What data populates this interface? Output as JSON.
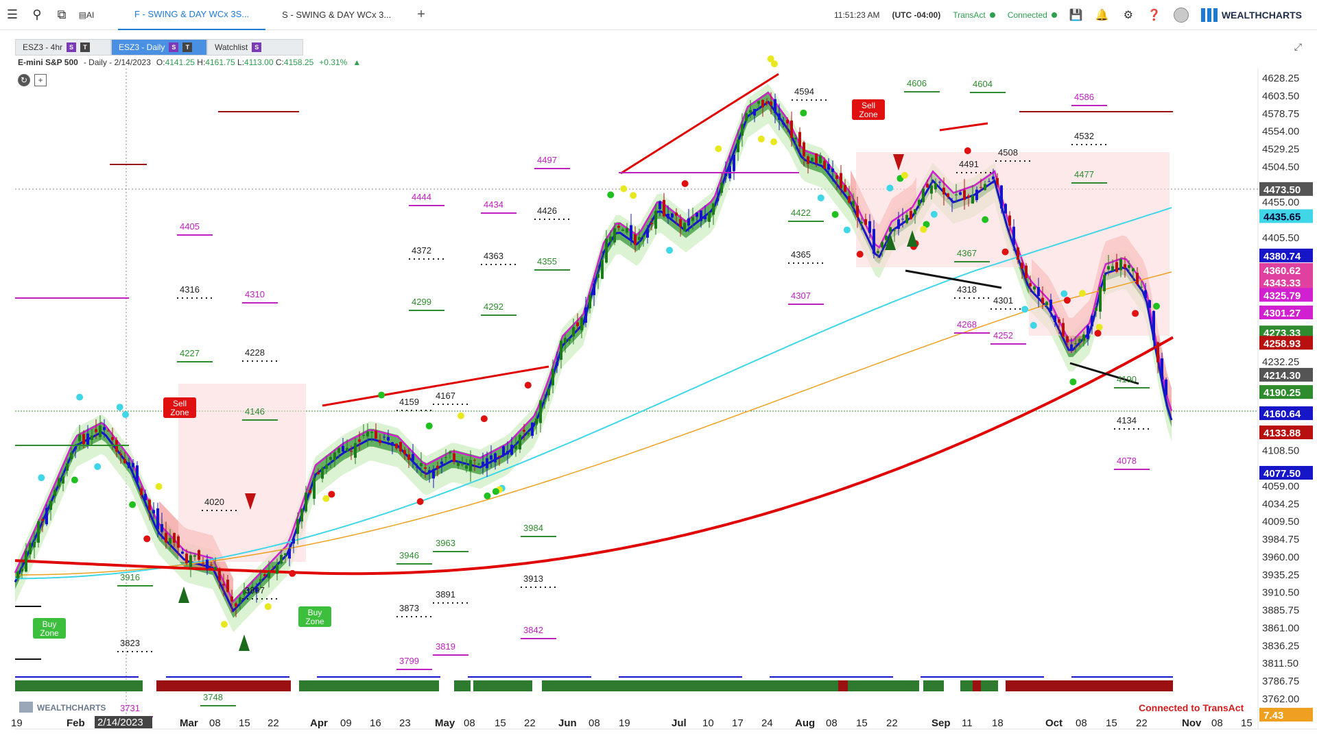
{
  "topbar": {
    "tabs": [
      {
        "label": "F - SWING & DAY WCx 3S...",
        "active": true
      },
      {
        "label": "S - SWING & DAY WCx 3...",
        "active": false
      }
    ],
    "plus": "+",
    "time": "11:51:23 AM",
    "tz": "(UTC -04:00)",
    "transact": "TransAct",
    "connected": "Connected",
    "logo": "WEALTHCHARTS",
    "ai_label": "AI"
  },
  "chart_tabs": [
    {
      "label": "ESZ3 - 4hr",
      "active": false,
      "badges": [
        "S",
        "T"
      ]
    },
    {
      "label": "ESZ3 - Daily",
      "active": true,
      "badges": [
        "S",
        "T"
      ]
    },
    {
      "label": "Watchlist",
      "active": false,
      "badges": [
        "S"
      ]
    }
  ],
  "legend": {
    "symbol": "E-mini S&P 500",
    "meta": "- Daily - 2/14/2023",
    "o_label": "O:",
    "o": "4141.25",
    "h_label": "H:",
    "h": "4161.75",
    "l_label": "L:",
    "l": "4113.00",
    "c_label": "C:",
    "c": "4158.25",
    "chg": "+0.31%"
  },
  "footer": {
    "connected_note": "Connected to TransAct",
    "watermark": "WEALTHCHARTS"
  },
  "colors": {
    "up": "#2e8b2e",
    "down": "#b80f0f",
    "blue": "#1616c8",
    "magenta": "#d020d0",
    "cyan": "#3fd6e8",
    "orange": "#f0a020",
    "red_ma": "#e00000",
    "accent": "#1d7bd8"
  },
  "chart_data": {
    "type": "candlestick",
    "x_labels": [
      "19",
      "Feb",
      "2/14/2023",
      "Mar",
      "08",
      "15",
      "22",
      "Apr",
      "09",
      "16",
      "23",
      "May",
      "08",
      "15",
      "22",
      "Jun",
      "08",
      "19",
      "Jul",
      "10",
      "17",
      "24",
      "Aug",
      "08",
      "15",
      "22",
      "Sep",
      "11",
      "18",
      "Oct",
      "08",
      "15",
      "22",
      "Nov",
      "08",
      "15"
    ],
    "y_ticks": [
      "4628.25",
      "4603.50",
      "4578.75",
      "4554.00",
      "4529.25",
      "4504.50",
      "4455.00",
      "4405.50",
      "4232.25",
      "4108.50",
      "4059.00",
      "4034.25",
      "4009.50",
      "3984.75",
      "3960.00",
      "3935.25",
      "3910.50",
      "3885.75",
      "3861.00",
      "3836.25",
      "3811.50",
      "3786.75",
      "3762.00"
    ],
    "price_tags": [
      {
        "value": "4473.50",
        "bg": "#555555"
      },
      {
        "value": "4435.65",
        "bg": "#3fd6e8"
      },
      {
        "value": "4380.74",
        "bg": "#1616c8"
      },
      {
        "value": "4360.62",
        "bg": "#e040a0"
      },
      {
        "value": "4343.33",
        "bg": "#e040a0"
      },
      {
        "value": "4325.79",
        "bg": "#d020d0"
      },
      {
        "value": "4301.27",
        "bg": "#d020d0"
      },
      {
        "value": "4273.33",
        "bg": "#2e8b2e"
      },
      {
        "value": "4258.93",
        "bg": "#b80f0f"
      },
      {
        "value": "4214.30",
        "bg": "#555555"
      },
      {
        "value": "4190.25",
        "bg": "#2e8b2e"
      },
      {
        "value": "4160.64",
        "bg": "#1616c8"
      },
      {
        "value": "4133.88",
        "bg": "#b80f0f"
      },
      {
        "value": "4077.50",
        "bg": "#1616c8"
      },
      {
        "value": "7.43",
        "bg": "#f0a020"
      }
    ],
    "levels": [
      {
        "label": "4606",
        "color": "green"
      },
      {
        "label": "4604",
        "color": "green"
      },
      {
        "label": "4594",
        "color": "black"
      },
      {
        "label": "4586",
        "color": "magenta"
      },
      {
        "label": "4532",
        "color": "black"
      },
      {
        "label": "4508",
        "color": "black"
      },
      {
        "label": "4497",
        "color": "magenta"
      },
      {
        "label": "4491",
        "color": "black"
      },
      {
        "label": "4477",
        "color": "green"
      },
      {
        "label": "4444",
        "color": "magenta"
      },
      {
        "label": "4434",
        "color": "magenta"
      },
      {
        "label": "4426",
        "color": "black"
      },
      {
        "label": "4422",
        "color": "green"
      },
      {
        "label": "4405",
        "color": "magenta"
      },
      {
        "label": "4372",
        "color": "black"
      },
      {
        "label": "4367",
        "color": "green"
      },
      {
        "label": "4365",
        "color": "black"
      },
      {
        "label": "4363",
        "color": "black"
      },
      {
        "label": "4355",
        "color": "green"
      },
      {
        "label": "4318",
        "color": "black"
      },
      {
        "label": "4316",
        "color": "black"
      },
      {
        "label": "4310",
        "color": "magenta"
      },
      {
        "label": "4307",
        "color": "magenta"
      },
      {
        "label": "4301",
        "color": "black"
      },
      {
        "label": "4299",
        "color": "green"
      },
      {
        "label": "4292",
        "color": "green"
      },
      {
        "label": "4268",
        "color": "magenta"
      },
      {
        "label": "4252",
        "color": "magenta"
      },
      {
        "label": "4228",
        "color": "black"
      },
      {
        "label": "4227",
        "color": "green"
      },
      {
        "label": "4190",
        "color": "green"
      },
      {
        "label": "4167",
        "color": "black"
      },
      {
        "label": "4159",
        "color": "black"
      },
      {
        "label": "4146",
        "color": "green"
      },
      {
        "label": "4134",
        "color": "black"
      },
      {
        "label": "4078",
        "color": "magenta"
      },
      {
        "label": "4020",
        "color": "black"
      },
      {
        "label": "3984",
        "color": "green"
      },
      {
        "label": "3963",
        "color": "green"
      },
      {
        "label": "3946",
        "color": "green"
      },
      {
        "label": "3916",
        "color": "green"
      },
      {
        "label": "3913",
        "color": "black"
      },
      {
        "label": "3897",
        "color": "black"
      },
      {
        "label": "3891",
        "color": "black"
      },
      {
        "label": "3873",
        "color": "black"
      },
      {
        "label": "3842",
        "color": "magenta"
      },
      {
        "label": "3823",
        "color": "black"
      },
      {
        "label": "3819",
        "color": "magenta"
      },
      {
        "label": "3799",
        "color": "magenta"
      },
      {
        "label": "3748",
        "color": "green"
      },
      {
        "label": "3731",
        "color": "magenta"
      }
    ],
    "zones": [
      {
        "label": "Sell Zone",
        "type": "sell"
      },
      {
        "label": "Sell Zone",
        "type": "sell"
      },
      {
        "label": "Buy Zone",
        "type": "buy"
      },
      {
        "label": "Buy Zone",
        "type": "buy"
      }
    ]
  }
}
